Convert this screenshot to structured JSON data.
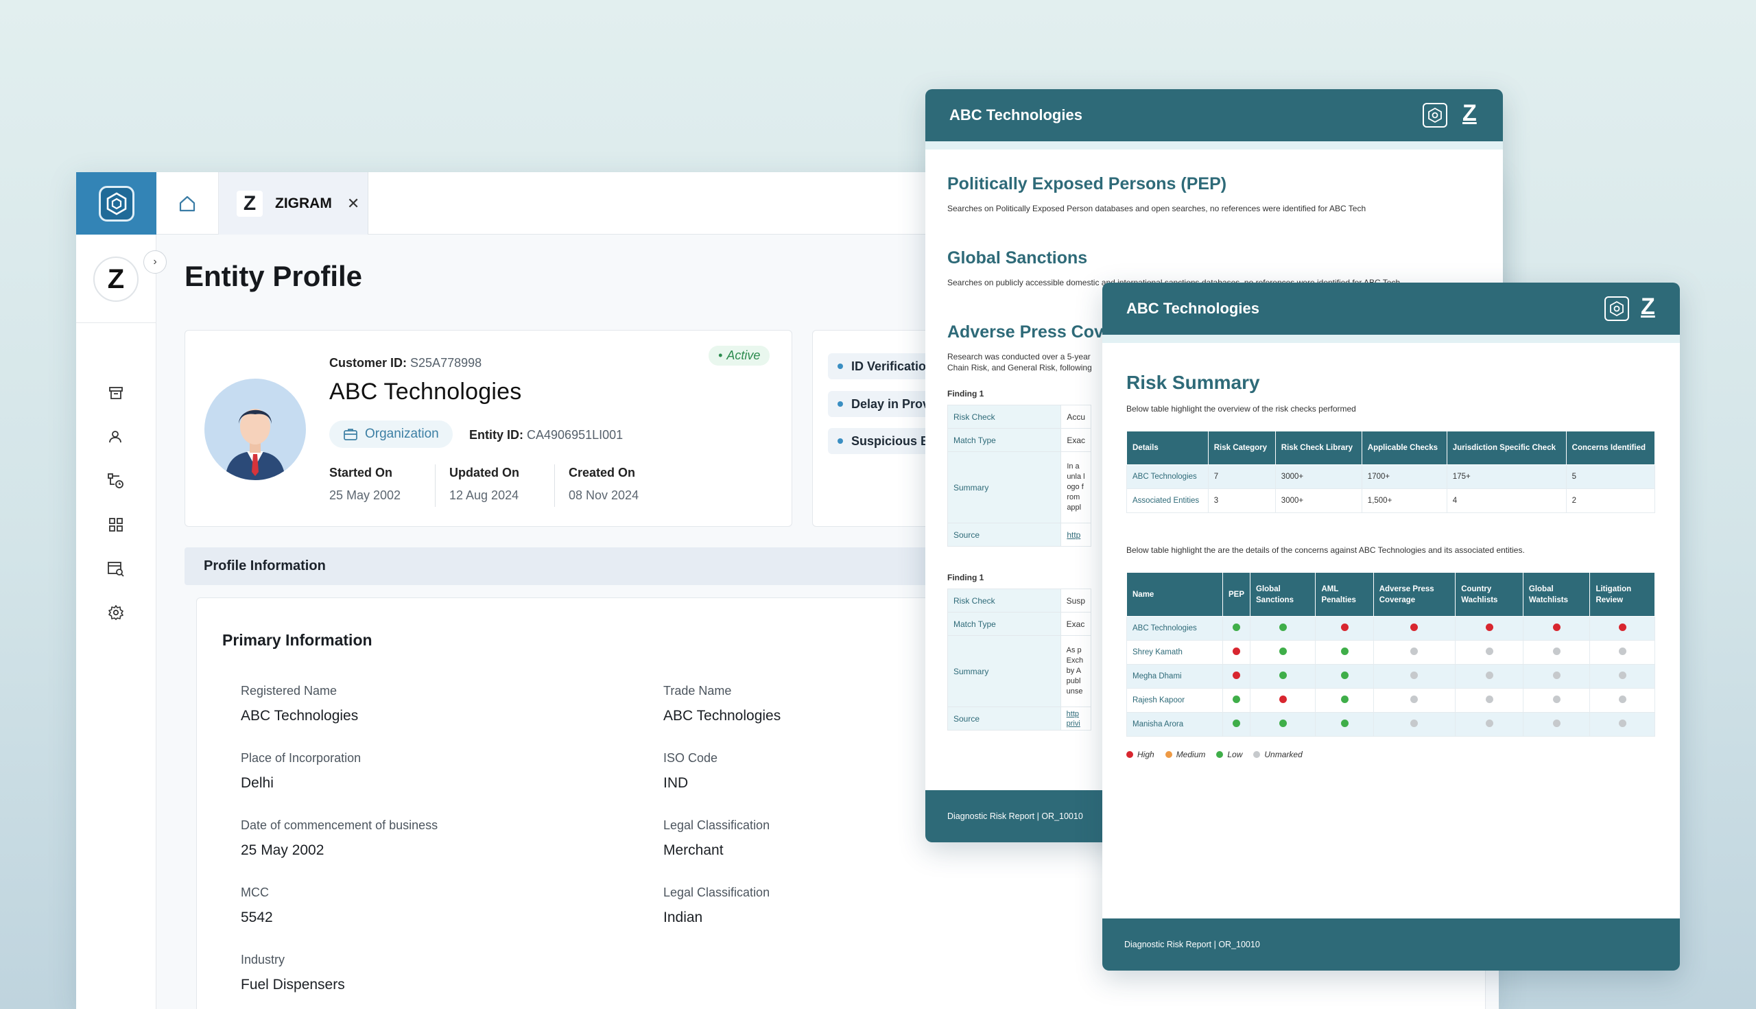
{
  "app": {
    "tab_label": "ZIGRAM",
    "tab_logo": "Z",
    "side_logo": "Z",
    "page_title": "Entity Profile",
    "profile": {
      "customer_id_label": "Customer ID:",
      "customer_id": "S25A778998",
      "status": "Active",
      "name": "ABC Technologies",
      "type_badge": "Organization",
      "entity_id_label": "Entity ID:",
      "entity_id": "CA4906951LI001",
      "started_label": "Started On",
      "started": "25 May 2002",
      "updated_label": "Updated On",
      "updated": "12 Aug 2024",
      "created_label": "Created On",
      "created": "08 Nov 2024"
    },
    "alerts": [
      "ID Verification",
      "Delay in Prov",
      "Suspicious B"
    ],
    "profile_info_title": "Profile Information",
    "primary_info_title": "Primary Information",
    "fields": [
      {
        "label": "Registered Name",
        "value": "ABC Technologies"
      },
      {
        "label": "Trade Name",
        "value": "ABC Technologies"
      },
      {
        "label": "Place of Incorporation",
        "value": "Delhi"
      },
      {
        "label": "ISO Code",
        "value": "IND"
      },
      {
        "label": "Date of commencement of business",
        "value": "25 May 2002"
      },
      {
        "label": "Legal Classification",
        "value": "Merchant"
      },
      {
        "label": "MCC",
        "value": "5542"
      },
      {
        "label": "Legal Classification",
        "value": "Indian"
      },
      {
        "label": "Industry",
        "value": "Fuel Dispensers"
      }
    ]
  },
  "report_back": {
    "header": "ABC Technologies",
    "logo": "Z",
    "pep_title": "Politically Exposed Persons (PEP)",
    "pep_text": "Searches on Politically Exposed Person databases and open searches, no references were identified for ABC Tech",
    "sanctions_title": "Global Sanctions",
    "sanctions_text": "Searches on publicly accessible domestic and international sanctions databases, no references were identified for ABC Tech",
    "adverse_title": "Adverse Press Cov",
    "adverse_text": "Research was conducted over a 5-year Chain Risk, and General Risk, following",
    "finding1_label": "Finding 1",
    "finding1": [
      {
        "k": "Risk Check",
        "v": "Accu"
      },
      {
        "k": "Match Type",
        "v": "Exac"
      },
      {
        "k": "Summary",
        "v": "In a unla logo from appl"
      },
      {
        "k": "Source",
        "v": "http"
      }
    ],
    "finding2_label": "Finding 1",
    "finding2": [
      {
        "k": "Risk Check",
        "v": "Susp"
      },
      {
        "k": "Match Type",
        "v": "Exac"
      },
      {
        "k": "Summary",
        "v": "As p Exch by A publ unse"
      },
      {
        "k": "Source",
        "v": "http privi"
      }
    ],
    "footer": "Diagnostic Risk Report | OR_10010"
  },
  "report_front": {
    "header": "ABC Technologies",
    "logo": "Z",
    "title": "Risk Summary",
    "intro": "Below table highlight the overview of the risk checks performed",
    "table1_headers": [
      "Details",
      "Risk Category",
      "Risk Check Library",
      "Applicable Checks",
      "Jurisdiction Specific Check",
      "Concerns Identified"
    ],
    "table1_rows": [
      [
        "ABC Technologies",
        "7",
        "3000+",
        "1700+",
        "175+",
        "5"
      ],
      [
        "Associated Entities",
        "3",
        "3000+",
        "1,500+",
        "4",
        "2"
      ]
    ],
    "intro2": "Below table highlight the are the details of the concerns against ABC Technologies and its associated entities.",
    "table2_headers": [
      "Name",
      "PEP",
      "Global Sanctions",
      "AML Penalties",
      "Adverse Press Coverage",
      "Country Wachlists",
      "Global Watchlists",
      "Litigation Review"
    ],
    "table2_rows": [
      {
        "name": "ABC Technologies",
        "levels": [
          "low",
          "low",
          "high",
          "high",
          "high",
          "high",
          "high"
        ]
      },
      {
        "name": "Shrey Kamath",
        "levels": [
          "high",
          "low",
          "low",
          "unmarked",
          "unmarked",
          "unmarked",
          "unmarked"
        ]
      },
      {
        "name": "Megha Dhami",
        "levels": [
          "high",
          "low",
          "low",
          "unmarked",
          "unmarked",
          "unmarked",
          "unmarked"
        ]
      },
      {
        "name": "Rajesh Kapoor",
        "levels": [
          "low",
          "high",
          "low",
          "unmarked",
          "unmarked",
          "unmarked",
          "unmarked"
        ]
      },
      {
        "name": "Manisha Arora",
        "levels": [
          "low",
          "low",
          "low",
          "unmarked",
          "unmarked",
          "unmarked",
          "unmarked"
        ]
      }
    ],
    "legend": [
      {
        "key": "high",
        "label": "High"
      },
      {
        "key": "medium",
        "label": "Medium"
      },
      {
        "key": "low",
        "label": "Low"
      },
      {
        "key": "unmarked",
        "label": "Unmarked"
      }
    ],
    "footer": "Diagnostic Risk Report | OR_10010"
  },
  "colors": {
    "high": "#d8262f",
    "medium": "#ee9a45",
    "low": "#3fae49",
    "unmarked": "#c6c9cc",
    "accent": "#2e6a78",
    "brand_blue": "#3384b6"
  },
  "icons": [
    "hexagon-logo-icon",
    "home-icon",
    "close-icon",
    "chevron-right-icon",
    "archive-icon",
    "user-search-icon",
    "flow-clock-icon",
    "grid-icon",
    "report-search-icon",
    "gear-icon",
    "briefcase-icon",
    "hex-gear-icon"
  ]
}
